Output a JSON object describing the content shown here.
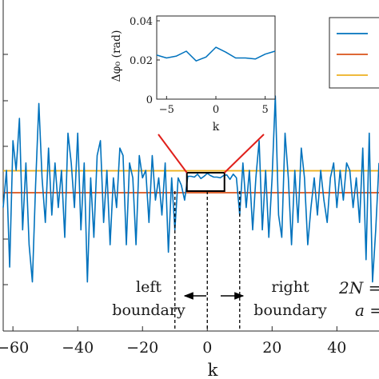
{
  "chart_data": [
    {
      "type": "line",
      "xlabel": "k",
      "ylabel": "",
      "xlim": [
        -63,
        53
      ],
      "x_ticks": [
        -60,
        -40,
        -20,
        0,
        20,
        40
      ],
      "x_tick_labels": [
        "−60",
        "−40",
        "−20",
        "0",
        "20",
        "40"
      ],
      "reference_lines": [
        {
          "value": 0.0,
          "color": "#d95319"
        },
        {
          "value": 0.0295,
          "color": "#edb120"
        }
      ],
      "series_color": "#0072bd",
      "annotations": {
        "left_boundary": [
          "left",
          "boundary"
        ],
        "right_boundary": [
          "right",
          "boundary"
        ],
        "formula_1": "2N =",
        "formula_2": "a ="
      },
      "boundary_k": [
        -10,
        10
      ],
      "zoom_window_k": [
        -5,
        5
      ],
      "series": [
        {
          "values": [
            [
              -63,
              -0.02
            ],
            [
              -62,
              0.03
            ],
            [
              -61,
              -0.1
            ],
            [
              -60,
              0.07
            ],
            [
              -59,
              0.03
            ],
            [
              -58,
              0.1
            ],
            [
              -57,
              -0.05
            ],
            [
              -56,
              0.04
            ],
            [
              -55,
              -0.07
            ],
            [
              -54,
              -0.12
            ],
            [
              -53,
              0.01
            ],
            [
              -52,
              0.12
            ],
            [
              -51,
              0.02
            ],
            [
              -50,
              -0.04
            ],
            [
              -49,
              0.06
            ],
            [
              -48,
              -0.03
            ],
            [
              -47,
              0.04
            ],
            [
              -46,
              -0.02
            ],
            [
              -45,
              0.03
            ],
            [
              -44,
              -0.06
            ],
            [
              -43,
              0.08
            ],
            [
              -42,
              0.04
            ],
            [
              -41,
              -0.02
            ],
            [
              -40,
              0.08
            ],
            [
              -39,
              -0.05
            ],
            [
              -38,
              0.04
            ],
            [
              -37,
              -0.12
            ],
            [
              -36,
              0.02
            ],
            [
              -35,
              -0.06
            ],
            [
              -34,
              0.05
            ],
            [
              -33,
              0.07
            ],
            [
              -32,
              -0.04
            ],
            [
              -31,
              0.03
            ],
            [
              -30,
              -0.07
            ],
            [
              -29,
              0.02
            ],
            [
              -28,
              -0.02
            ],
            [
              -27,
              0.06
            ],
            [
              -26,
              0.05
            ],
            [
              -25,
              -0.07
            ],
            [
              -24,
              0.04
            ],
            [
              -23,
              0.02
            ],
            [
              -22,
              -0.07
            ],
            [
              -21,
              0.05
            ],
            [
              -20,
              0.02
            ],
            [
              -19,
              0.03
            ],
            [
              -18,
              -0.04
            ],
            [
              -17,
              0.05
            ],
            [
              -16,
              -0.01
            ],
            [
              -15,
              0.02
            ],
            [
              -14,
              -0.03
            ],
            [
              -13,
              0.04
            ],
            [
              -12,
              -0.08
            ],
            [
              -11,
              0.02
            ],
            [
              -10,
              -0.05
            ],
            [
              -9,
              0.02
            ],
            [
              -8,
              0.01
            ],
            [
              -7,
              -0.01
            ],
            [
              -6,
              0.022
            ],
            [
              -5,
              0.022
            ],
            [
              -4,
              0.021
            ],
            [
              -3,
              0.025
            ],
            [
              -2,
              0.019
            ],
            [
              -1,
              0.022
            ],
            [
              0,
              0.026
            ],
            [
              1,
              0.023
            ],
            [
              2,
              0.021
            ],
            [
              3,
              0.021
            ],
            [
              4,
              0.02
            ],
            [
              5,
              0.023
            ],
            [
              6,
              0.024
            ],
            [
              7,
              0.018
            ],
            [
              8,
              0.025
            ],
            [
              9,
              0.02
            ],
            [
              10,
              -0.03
            ],
            [
              11,
              0.04
            ],
            [
              12,
              -0.02
            ],
            [
              13,
              0.03
            ],
            [
              14,
              -0.05
            ],
            [
              15,
              0.02
            ],
            [
              16,
              0.07
            ],
            [
              17,
              -0.05
            ],
            [
              18,
              0.03
            ],
            [
              19,
              -0.06
            ],
            [
              20,
              0.02
            ],
            [
              21,
              0.13
            ],
            [
              22,
              -0.03
            ],
            [
              23,
              -0.06
            ],
            [
              24,
              0.08
            ],
            [
              25,
              0.02
            ],
            [
              26,
              -0.07
            ],
            [
              27,
              0.03
            ],
            [
              28,
              -0.04
            ],
            [
              29,
              0.06
            ],
            [
              30,
              0.02
            ],
            [
              31,
              -0.07
            ],
            [
              32,
              -0.02
            ],
            [
              33,
              0.02
            ],
            [
              34,
              -0.03
            ],
            [
              35,
              0.03
            ],
            [
              36,
              -0.01
            ],
            [
              37,
              -0.04
            ],
            [
              38,
              0.02
            ],
            [
              39,
              0.04
            ],
            [
              40,
              -0.02
            ],
            [
              41,
              0.03
            ],
            [
              42,
              -0.01
            ],
            [
              43,
              0.04
            ],
            [
              44,
              0.03
            ],
            [
              45,
              -0.02
            ],
            [
              46,
              0.02
            ],
            [
              47,
              -0.04
            ],
            [
              48,
              0.06
            ],
            [
              49,
              -0.09
            ],
            [
              50,
              0.08
            ],
            [
              51,
              -0.12
            ],
            [
              52,
              -0.05
            ],
            [
              53,
              0.04
            ]
          ]
        }
      ]
    },
    {
      "type": "line",
      "ylabel": "Δφ₀ (rad)",
      "xlabel": "k",
      "xlim": [
        -6,
        6
      ],
      "ylim": [
        0,
        0.04
      ],
      "x_ticks": [
        -5,
        0,
        5
      ],
      "x_tick_labels": [
        "−5",
        "0",
        "5"
      ],
      "y_ticks": [
        0,
        0.02,
        0.04
      ],
      "y_tick_labels": [
        "0",
        "0.02",
        "0.04"
      ],
      "series_color": "#0072bd",
      "series": [
        {
          "values": [
            [
              -6,
              0.0225
            ],
            [
              -5,
              0.021
            ],
            [
              -4,
              0.022
            ],
            [
              -3,
              0.0245
            ],
            [
              -2,
              0.0195
            ],
            [
              -1,
              0.0215
            ],
            [
              0,
              0.0265
            ],
            [
              1,
              0.024
            ],
            [
              2,
              0.021
            ],
            [
              3,
              0.021
            ],
            [
              4,
              0.0205
            ],
            [
              5,
              0.023
            ],
            [
              6,
              0.0245
            ]
          ]
        }
      ]
    }
  ],
  "legend": {
    "colors": [
      "#0072bd",
      "#d95319",
      "#edb120"
    ],
    "labels": [
      "",
      "",
      ""
    ]
  }
}
